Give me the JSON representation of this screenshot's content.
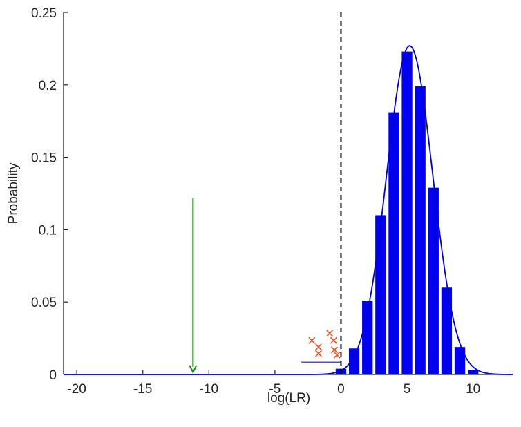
{
  "chart_data": {
    "type": "bar",
    "title": "",
    "xlabel": "log(LR)",
    "ylabel": "Probability",
    "xlim": [
      -21,
      13
    ],
    "ylim": [
      0,
      0.25
    ],
    "xticks": [
      -20,
      -15,
      -10,
      -5,
      0,
      5,
      10
    ],
    "xtick_labels": [
      "-20",
      "-15",
      "-10",
      "-5",
      "0",
      "5",
      "10"
    ],
    "yticks": [
      0,
      0.05,
      0.1,
      0.15,
      0.2,
      0.25
    ],
    "ytick_labels": [
      "0",
      "0.05",
      "0.1",
      "0.15",
      "0.2",
      "0.25"
    ],
    "grid": false,
    "bars": {
      "color": "#0000ee",
      "width": 0.8,
      "x": [
        0,
        1,
        2,
        3,
        4,
        5,
        6,
        7,
        8,
        9,
        10
      ],
      "values": [
        0.004,
        0.018,
        0.051,
        0.11,
        0.181,
        0.223,
        0.199,
        0.129,
        0.06,
        0.019,
        0.003
      ]
    },
    "fit_curve": {
      "type": "normal_pdf",
      "mean": 5.2,
      "sd": 1.75,
      "peak": 0.227,
      "color": "#0000cc"
    },
    "reference_line": {
      "x": 0,
      "style": "dashed",
      "color": "#000000"
    },
    "arrow": {
      "x": -11.2,
      "y_from": 0.122,
      "y_to": 0.0015,
      "color": "#1a8a1a"
    },
    "cross_markers": {
      "color": "#d9552b",
      "points": [
        {
          "x": -2.2,
          "y": 0.0235
        },
        {
          "x": -1.7,
          "y": 0.019
        },
        {
          "x": -1.7,
          "y": 0.0145
        },
        {
          "x": -0.85,
          "y": 0.0285
        },
        {
          "x": -0.55,
          "y": 0.0235
        },
        {
          "x": -0.5,
          "y": 0.017
        },
        {
          "x": -0.3,
          "y": 0.0135
        }
      ]
    },
    "short_line": {
      "x": [
        -3,
        0
      ],
      "y": 0.0085,
      "color": "#1a1a8c"
    }
  }
}
